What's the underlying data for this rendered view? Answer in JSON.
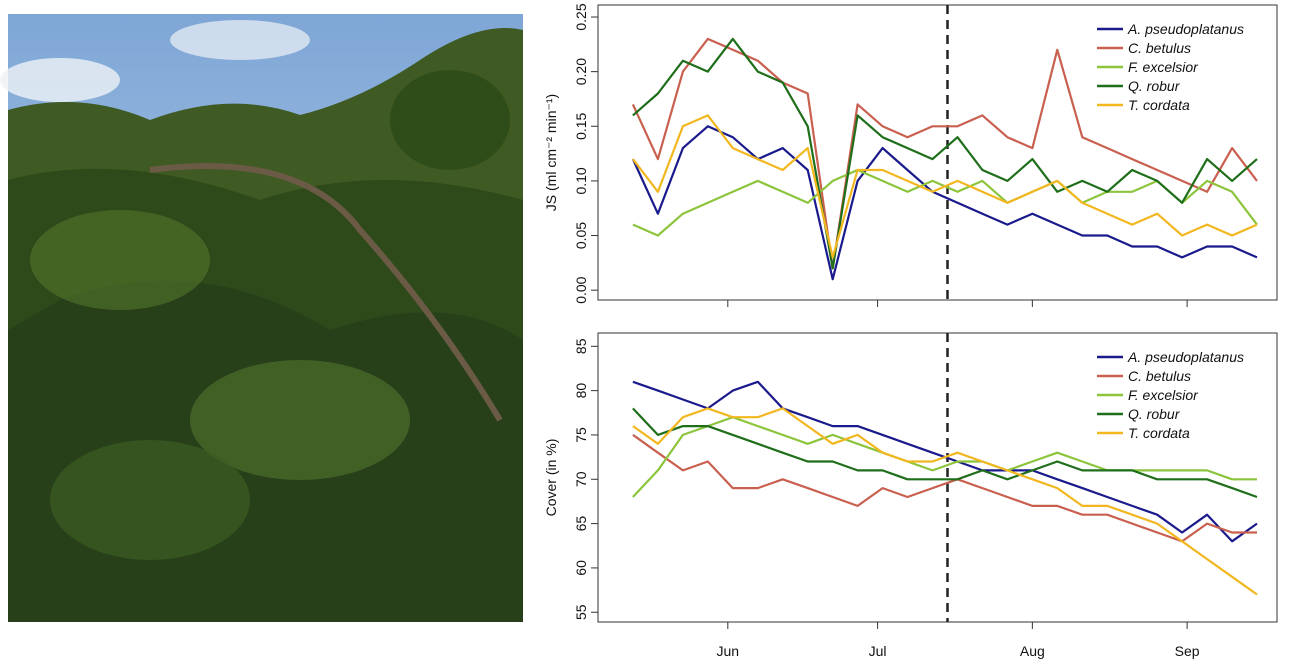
{
  "chart_data": [
    {
      "type": "line",
      "ylabel": "JS (ml cm⁻² min⁻¹)",
      "x": [
        133,
        138,
        143,
        148,
        153,
        158,
        163,
        168,
        173,
        178,
        183,
        188,
        193,
        198,
        203,
        208,
        213,
        218,
        223,
        228,
        233,
        238,
        243,
        248,
        253,
        258
      ],
      "xlim": [
        126,
        262
      ],
      "xticks": [
        152,
        182,
        213,
        244
      ],
      "xtick_labels": false,
      "ylim": [
        -0.009,
        0.261
      ],
      "yticks": [
        {
          "value": 0,
          "label": "0.00"
        },
        {
          "value": 0.05,
          "label": "0.05"
        },
        {
          "value": 0.1,
          "label": "0.10"
        },
        {
          "value": 0.15,
          "label": "0.15"
        },
        {
          "value": 0.2,
          "label": "0.20"
        },
        {
          "value": 0.25,
          "label": "0.25"
        }
      ],
      "vline": 196,
      "legend": "top-right",
      "series": [
        {
          "name": "A. pseudoplatanus",
          "color": "#1a1a8c",
          "values": [
            0.12,
            0.07,
            0.13,
            0.15,
            0.14,
            0.12,
            0.13,
            0.11,
            0.01,
            0.1,
            0.13,
            0.11,
            0.09,
            0.08,
            0.07,
            0.06,
            0.07,
            0.06,
            0.05,
            0.05,
            0.04,
            0.04,
            0.03,
            0.04,
            0.04,
            0.03
          ]
        },
        {
          "name": "C. betulus",
          "color": "#c9604f",
          "values": [
            0.17,
            0.12,
            0.2,
            0.23,
            0.22,
            0.21,
            0.19,
            0.18,
            0.02,
            0.17,
            0.15,
            0.14,
            0.15,
            0.15,
            0.16,
            0.14,
            0.13,
            0.22,
            0.14,
            0.13,
            0.12,
            0.11,
            0.1,
            0.09,
            0.13,
            0.1
          ]
        },
        {
          "name": "F. excelsior",
          "color": "#8cc43c",
          "values": [
            0.06,
            0.05,
            0.07,
            0.08,
            0.09,
            0.1,
            0.09,
            0.08,
            0.1,
            0.11,
            0.1,
            0.09,
            0.1,
            0.09,
            0.1,
            0.08,
            0.09,
            0.1,
            0.08,
            0.09,
            0.09,
            0.1,
            0.08,
            0.1,
            0.09,
            0.06
          ]
        },
        {
          "name": "Q. robur",
          "color": "#1e6e1a",
          "values": [
            0.16,
            0.18,
            0.21,
            0.2,
            0.23,
            0.2,
            0.19,
            0.15,
            0.02,
            0.16,
            0.14,
            0.13,
            0.12,
            0.14,
            0.11,
            0.1,
            0.12,
            0.09,
            0.1,
            0.09,
            0.11,
            0.1,
            0.08,
            0.12,
            0.1,
            0.12
          ]
        },
        {
          "name": "T. cordata",
          "color": "#f2b71f",
          "values": [
            0.12,
            0.09,
            0.15,
            0.16,
            0.13,
            0.12,
            0.11,
            0.13,
            0.03,
            0.11,
            0.11,
            0.1,
            0.09,
            0.1,
            0.09,
            0.08,
            0.09,
            0.1,
            0.08,
            0.07,
            0.06,
            0.07,
            0.05,
            0.06,
            0.05,
            0.06
          ]
        }
      ]
    },
    {
      "type": "line",
      "ylabel": "Cover (in %)",
      "x": [
        133,
        138,
        143,
        148,
        153,
        158,
        163,
        168,
        173,
        178,
        183,
        188,
        193,
        198,
        203,
        208,
        213,
        218,
        223,
        228,
        233,
        238,
        243,
        248,
        253,
        258
      ],
      "xlim": [
        126,
        262
      ],
      "xticks": [
        {
          "value": 152,
          "label": "Jun"
        },
        {
          "value": 182,
          "label": "Jul"
        },
        {
          "value": 213,
          "label": "Aug"
        },
        {
          "value": 244,
          "label": "Sep"
        }
      ],
      "xtick_labels": true,
      "ylim": [
        53.9,
        86.5
      ],
      "yticks": [
        55,
        60,
        65,
        70,
        75,
        80,
        85
      ],
      "vline": 196,
      "legend": "top-right",
      "series": [
        {
          "name": "A. pseudoplatanus",
          "color": "#1a1a8c",
          "values": [
            81,
            80,
            79,
            78,
            80,
            81,
            78,
            77,
            76,
            76,
            75,
            74,
            73,
            72,
            71,
            71,
            71,
            70,
            69,
            68,
            67,
            66,
            64,
            66,
            63,
            65
          ]
        },
        {
          "name": "C. betulus",
          "color": "#c9604f",
          "values": [
            75,
            73,
            71,
            72,
            69,
            69,
            70,
            69,
            68,
            67,
            69,
            68,
            69,
            70,
            69,
            68,
            67,
            67,
            66,
            66,
            65,
            64,
            63,
            65,
            64,
            64
          ]
        },
        {
          "name": "F. excelsior",
          "color": "#8cc43c",
          "values": [
            68,
            71,
            75,
            76,
            77,
            76,
            75,
            74,
            75,
            74,
            73,
            72,
            71,
            72,
            72,
            71,
            72,
            73,
            72,
            71,
            71,
            71,
            71,
            71,
            70,
            70
          ]
        },
        {
          "name": "Q. robur",
          "color": "#1e6e1a",
          "values": [
            78,
            75,
            76,
            76,
            75,
            74,
            73,
            72,
            72,
            71,
            71,
            70,
            70,
            70,
            71,
            70,
            71,
            72,
            71,
            71,
            71,
            70,
            70,
            70,
            69,
            68
          ]
        },
        {
          "name": "T. cordata",
          "color": "#f2b71f",
          "values": [
            76,
            74,
            77,
            78,
            77,
            77,
            78,
            76,
            74,
            75,
            73,
            72,
            72,
            73,
            72,
            71,
            70,
            69,
            67,
            67,
            66,
            65,
            63,
            61,
            59,
            57
          ]
        }
      ]
    }
  ]
}
